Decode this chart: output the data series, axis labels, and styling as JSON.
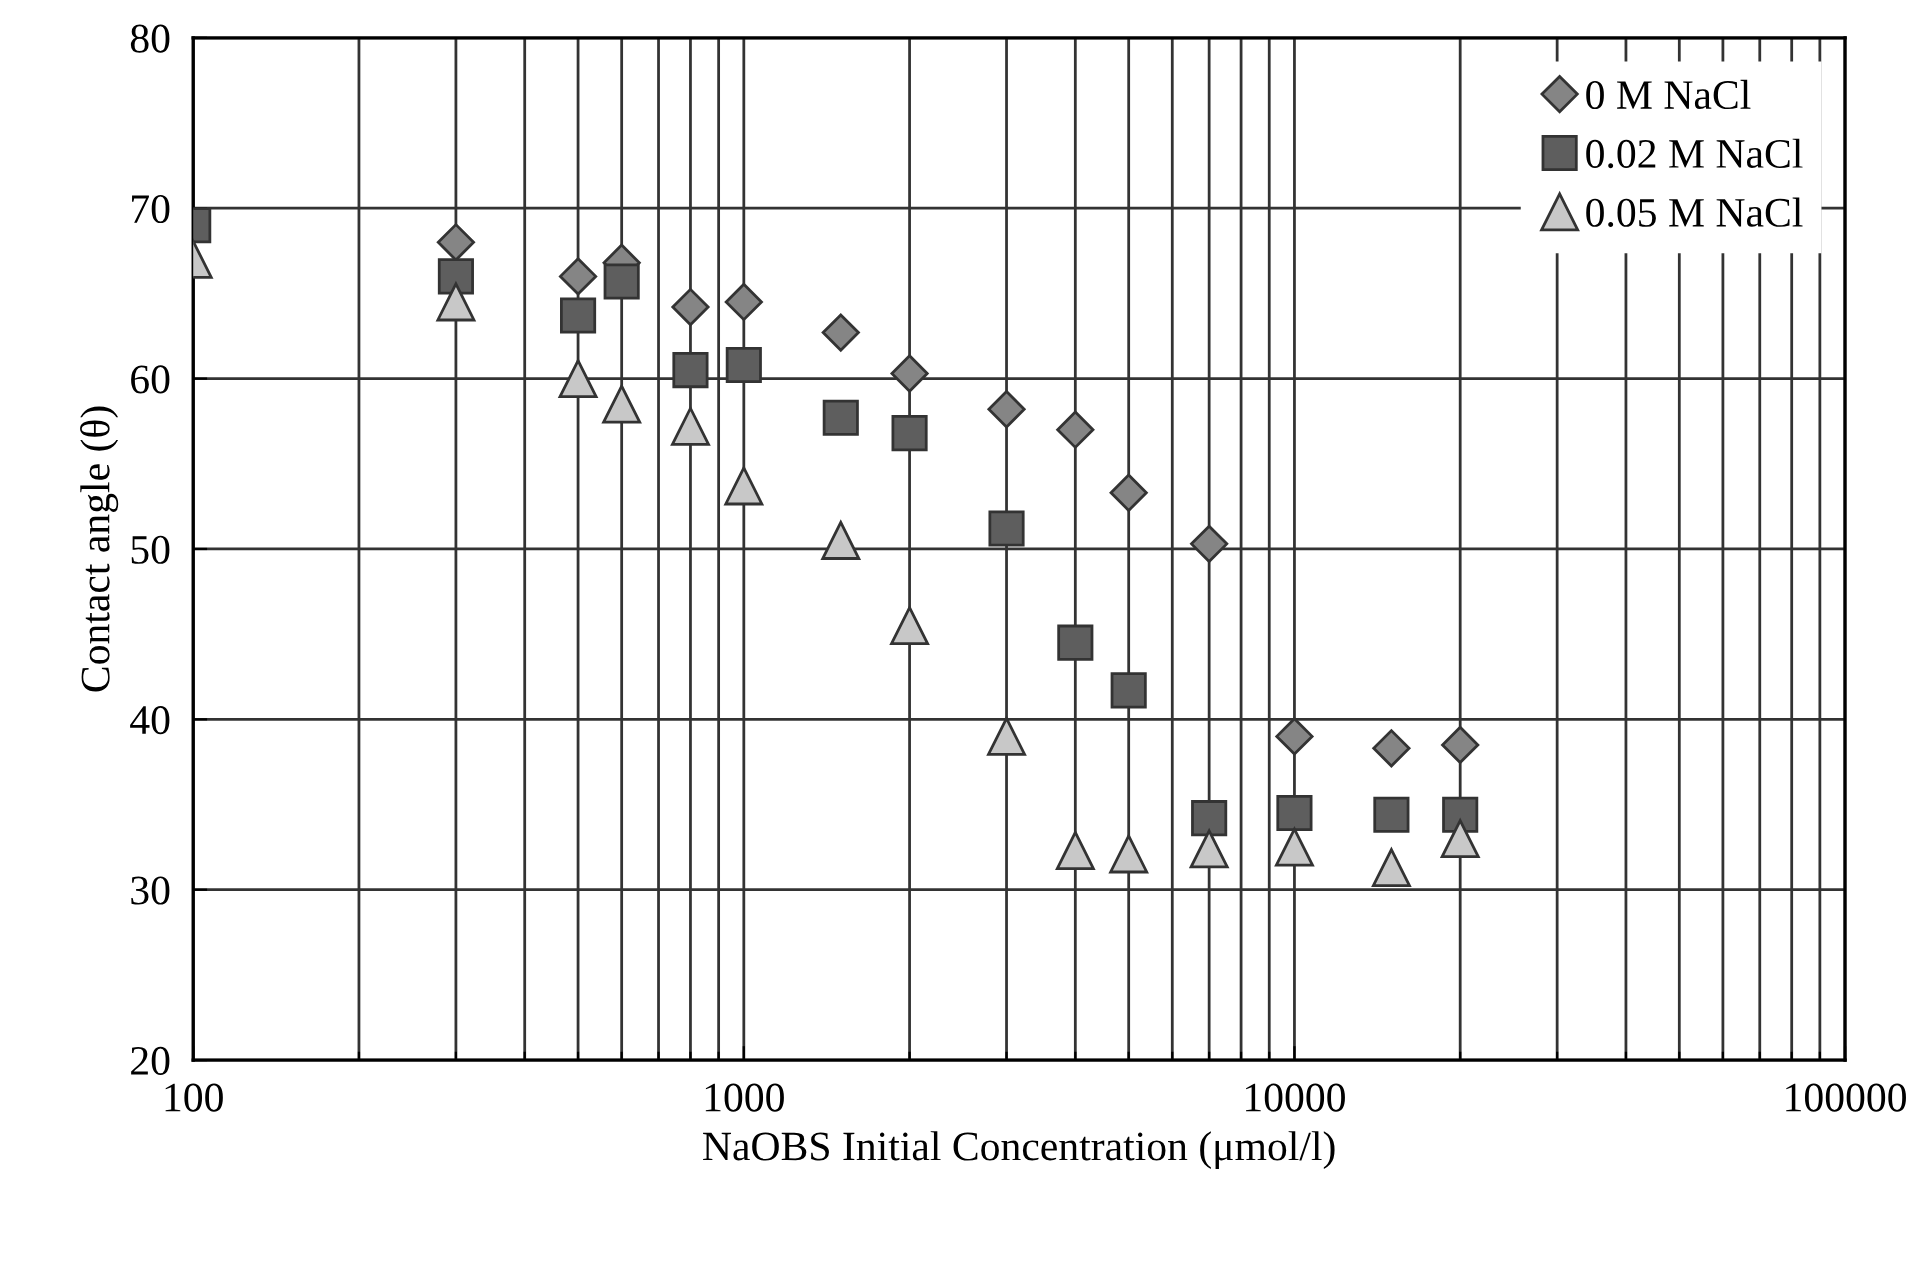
{
  "chart_data": {
    "type": "scatter",
    "xlabel": "NaOBS Initial Concentration (μmol/l)",
    "ylabel": "Contact angle (θ)",
    "x": [
      100,
      300,
      500,
      600,
      800,
      1000,
      1500,
      2000,
      3000,
      4000,
      5000,
      7000,
      10000,
      15000,
      20000
    ],
    "series": [
      {
        "name": "0 M NaCl",
        "color": "#858585",
        "marker": "diamond",
        "values": [
          null,
          68,
          66,
          66.8,
          64.2,
          64.5,
          62.7,
          60.3,
          58.2,
          57,
          53.3,
          50.3,
          39,
          38.3,
          38.5
        ]
      },
      {
        "name": "0.02 M NaCl",
        "color": "#5e5e5e",
        "marker": "square",
        "values": [
          69,
          66,
          63.7,
          65.7,
          60.5,
          60.8,
          57.7,
          56.8,
          51.2,
          44.5,
          41.7,
          34.2,
          34.5,
          34.4,
          34.4
        ]
      },
      {
        "name": "0.05 M NaCl",
        "color": "#c8c8c8",
        "marker": "triangle",
        "values": [
          67,
          64.5,
          60,
          58.5,
          57.2,
          53.7,
          50.5,
          45.5,
          39,
          32.3,
          32.1,
          32.4,
          32.5,
          31.3,
          33
        ]
      }
    ],
    "log": "x",
    "xlim": [
      100,
      100000
    ],
    "xticks": [
      100,
      {
        "value": 200,
        "label": null
      },
      {
        "value": 300,
        "label": null
      },
      {
        "value": 400,
        "label": null
      },
      {
        "value": 500,
        "label": null
      },
      {
        "value": 600,
        "label": null
      },
      {
        "value": 700,
        "label": null
      },
      {
        "value": 800,
        "label": null
      },
      {
        "value": 900,
        "label": null
      },
      1000,
      {
        "value": 2000,
        "label": null
      },
      {
        "value": 3000,
        "label": null
      },
      {
        "value": 4000,
        "label": null
      },
      {
        "value": 5000,
        "label": null
      },
      {
        "value": 6000,
        "label": null
      },
      {
        "value": 7000,
        "label": null
      },
      {
        "value": 8000,
        "label": null
      },
      {
        "value": 9000,
        "label": null
      },
      10000,
      {
        "value": 20000,
        "label": null
      },
      {
        "value": 30000,
        "label": null
      },
      {
        "value": 40000,
        "label": null
      },
      {
        "value": 50000,
        "label": null
      },
      {
        "value": 60000,
        "label": null
      },
      {
        "value": 70000,
        "label": null
      },
      {
        "value": 80000,
        "label": null
      },
      {
        "value": 90000,
        "label": null
      },
      100000
    ],
    "ylim": [
      20,
      80
    ],
    "yticks": [
      20,
      30,
      40,
      50,
      60,
      70,
      80
    ],
    "grid": true,
    "legend": "top right"
  }
}
